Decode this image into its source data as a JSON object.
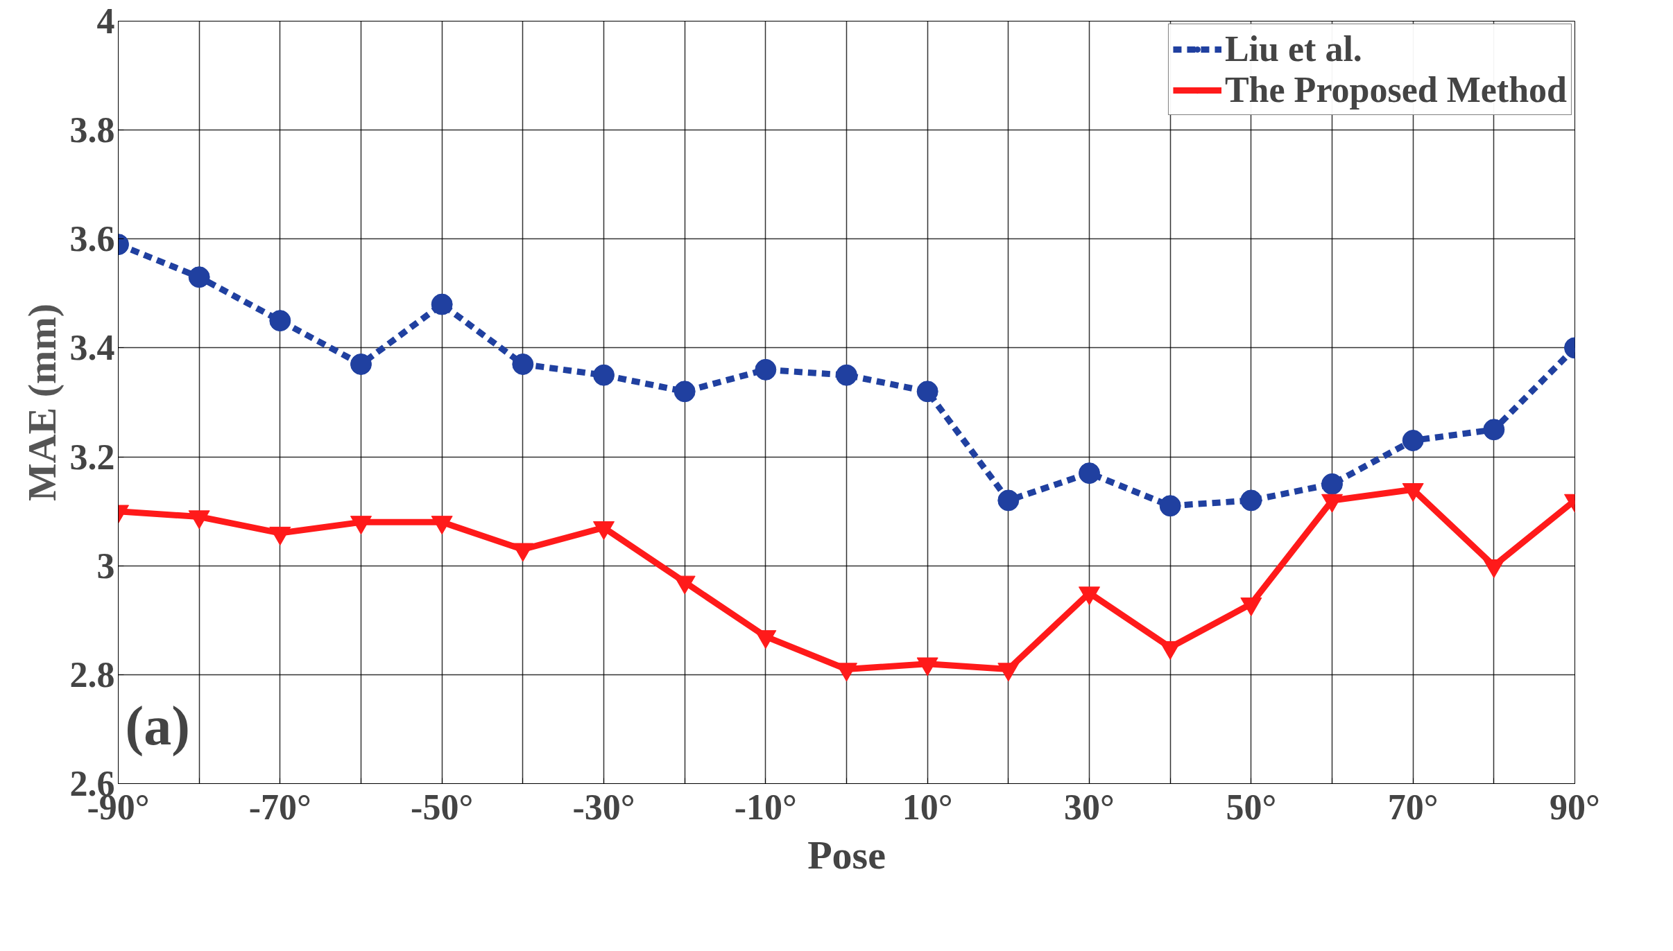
{
  "chart_data": {
    "type": "line",
    "xlabel": "Pose",
    "ylabel": "MAE (mm)",
    "annotations": [
      "(a)"
    ],
    "x": [
      -90,
      -80,
      -70,
      -60,
      -50,
      -40,
      -30,
      -20,
      -10,
      0,
      10,
      20,
      30,
      40,
      50,
      60,
      70,
      80,
      90
    ],
    "series": [
      {
        "name": "Liu et al.",
        "color": "#2040a0",
        "marker": "circle",
        "line_style": "dashed",
        "values": [
          3.59,
          3.53,
          3.45,
          3.37,
          3.48,
          3.37,
          3.35,
          3.32,
          3.36,
          3.35,
          3.32,
          3.12,
          3.17,
          3.11,
          3.12,
          3.15,
          3.23,
          3.25,
          3.4
        ]
      },
      {
        "name": "The Proposed Method",
        "color": "#ff1a1a",
        "marker": "triangle",
        "line_style": "solid",
        "values": [
          3.1,
          3.09,
          3.06,
          3.08,
          3.08,
          3.03,
          3.07,
          2.97,
          2.87,
          2.81,
          2.82,
          2.81,
          2.95,
          2.85,
          2.93,
          3.12,
          3.14,
          3.0,
          3.12
        ]
      }
    ],
    "xlim": [
      -90,
      90
    ],
    "xticks": [
      {
        "value": -90,
        "label": "-90°"
      },
      {
        "value": -80,
        "label": null
      },
      {
        "value": -70,
        "label": "-70°"
      },
      {
        "value": -60,
        "label": null
      },
      {
        "value": -50,
        "label": "-50°"
      },
      {
        "value": -40,
        "label": null
      },
      {
        "value": -30,
        "label": "-30°"
      },
      {
        "value": -20,
        "label": null
      },
      {
        "value": -10,
        "label": "-10°"
      },
      {
        "value": 0,
        "label": null
      },
      {
        "value": 10,
        "label": "10°"
      },
      {
        "value": 20,
        "label": null
      },
      {
        "value": 30,
        "label": "30°"
      },
      {
        "value": 40,
        "label": null
      },
      {
        "value": 50,
        "label": "50°"
      },
      {
        "value": 60,
        "label": null
      },
      {
        "value": 70,
        "label": "70°"
      },
      {
        "value": 80,
        "label": null
      },
      {
        "value": 90,
        "label": "90°"
      }
    ],
    "ylim": [
      2.6,
      4
    ],
    "yticks": [
      2.6,
      2.8,
      3,
      3.2,
      3.4,
      3.6,
      3.8,
      4
    ],
    "grid": true,
    "legend": "top right"
  }
}
